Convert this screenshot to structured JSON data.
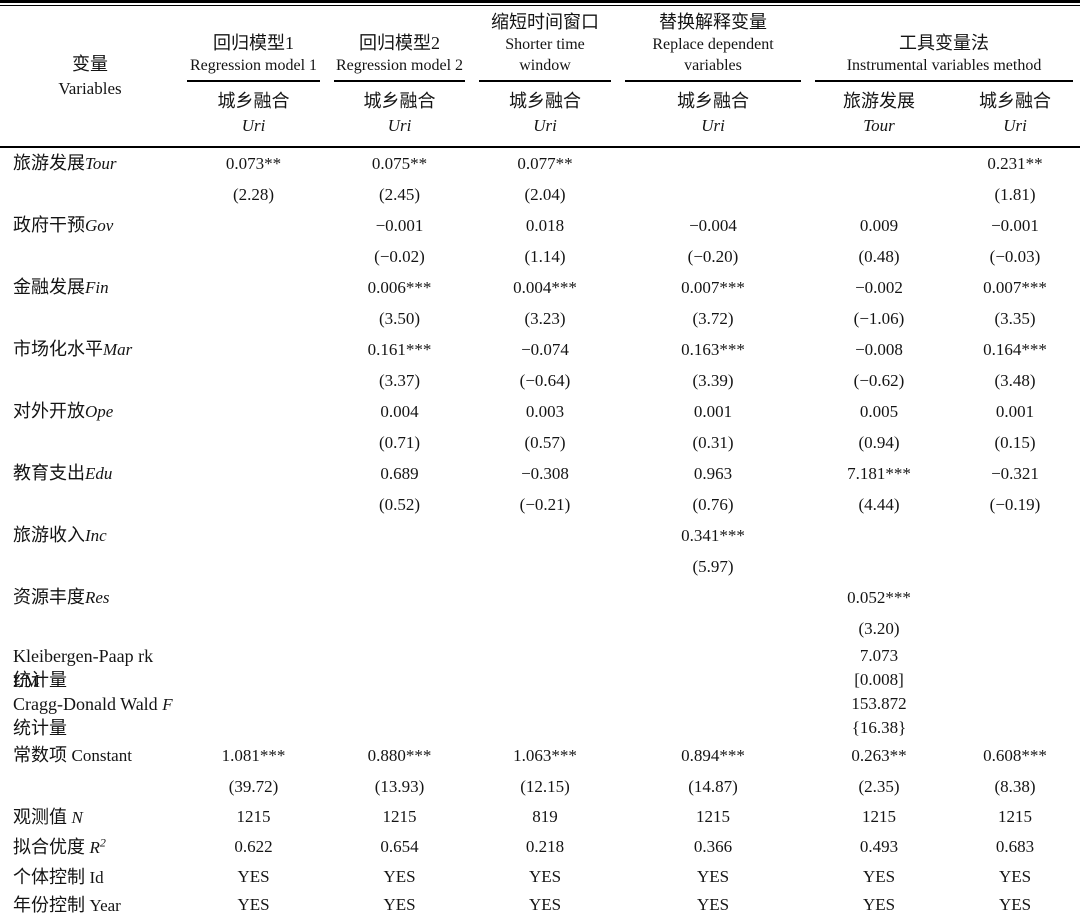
{
  "colors": {
    "background": "#ffffff",
    "text": "#141414",
    "rule": "#000000"
  },
  "table": {
    "header": {
      "variables": {
        "zh": "变量",
        "en": "Variables"
      },
      "groups": [
        {
          "zh": "回归模型1",
          "en": "Regression model 1",
          "cols": 1
        },
        {
          "zh": "回归模型2",
          "en": "Regression model 2",
          "cols": 1
        },
        {
          "zh": "缩短时间窗口",
          "en": "Shorter time window",
          "cols": 1
        },
        {
          "zh": "替换解释变量",
          "en": "Replace dependent variables",
          "cols": 1
        },
        {
          "zh": "工具变量法",
          "en": "Instrumental variables method",
          "cols": 2
        }
      ],
      "columns": [
        {
          "zh": "城乡融合",
          "en": "Uri"
        },
        {
          "zh": "城乡融合",
          "en": "Uri"
        },
        {
          "zh": "城乡融合",
          "en": "Uri"
        },
        {
          "zh": "城乡融合",
          "en": "Uri"
        },
        {
          "zh": "旅游发展",
          "en": "Tour"
        },
        {
          "zh": "城乡融合",
          "en": "Uri"
        }
      ]
    },
    "rows": [
      {
        "label": {
          "zh": "旅游发展",
          "en": "Tour"
        },
        "it": true,
        "cells": [
          [
            "0.073**",
            "(2.28)"
          ],
          [
            "0.075**",
            "(2.45)"
          ],
          [
            "0.077**",
            "(2.04)"
          ],
          null,
          null,
          [
            "0.231**",
            "(1.81)"
          ]
        ]
      },
      {
        "label": {
          "zh": "政府干预",
          "en": "Gov"
        },
        "it": true,
        "cells": [
          null,
          [
            "−0.001",
            "(−0.02)"
          ],
          [
            "0.018",
            "(1.14)"
          ],
          [
            "−0.004",
            "(−0.20)"
          ],
          [
            "0.009",
            "(0.48)"
          ],
          [
            "−0.001",
            "(−0.03)"
          ]
        ]
      },
      {
        "label": {
          "zh": "金融发展",
          "en": "Fin"
        },
        "it": true,
        "cells": [
          null,
          [
            "0.006***",
            "(3.50)"
          ],
          [
            "0.004***",
            "(3.23)"
          ],
          [
            "0.007***",
            "(3.72)"
          ],
          [
            "−0.002",
            "(−1.06)"
          ],
          [
            "0.007***",
            "(3.35)"
          ]
        ]
      },
      {
        "label": {
          "zh": "市场化水平",
          "en": "Mar"
        },
        "it": true,
        "cells": [
          null,
          [
            "0.161***",
            "(3.37)"
          ],
          [
            "−0.074",
            "(−0.64)"
          ],
          [
            "0.163***",
            "(3.39)"
          ],
          [
            "−0.008",
            "(−0.62)"
          ],
          [
            "0.164***",
            "(3.48)"
          ]
        ]
      },
      {
        "label": {
          "zh": "对外开放",
          "en": "Ope"
        },
        "it": true,
        "cells": [
          null,
          [
            "0.004",
            "(0.71)"
          ],
          [
            "0.003",
            "(0.57)"
          ],
          [
            "0.001",
            "(0.31)"
          ],
          [
            "0.005",
            "(0.94)"
          ],
          [
            "0.001",
            "(0.15)"
          ]
        ]
      },
      {
        "label": {
          "zh": "教育支出",
          "en": "Edu"
        },
        "it": true,
        "cells": [
          null,
          [
            "0.689",
            "(0.52)"
          ],
          [
            "−0.308",
            "(−0.21)"
          ],
          [
            "0.963",
            "(0.76)"
          ],
          [
            "7.181***",
            "(4.44)"
          ],
          [
            "−0.321",
            "(−0.19)"
          ]
        ]
      },
      {
        "label": {
          "zh": "旅游收入",
          "en": "Inc"
        },
        "it": true,
        "cells": [
          null,
          null,
          null,
          [
            "0.341***",
            "(5.97)"
          ],
          null,
          null
        ]
      },
      {
        "label": {
          "zh": "资源丰度",
          "en": "Res"
        },
        "it": true,
        "cells": [
          null,
          null,
          null,
          null,
          [
            "0.052***",
            "(3.20)"
          ],
          null
        ]
      },
      {
        "label": {
          "zh": "Kleibergen-Paap rk LM",
          "en": ""
        },
        "label2": "统计量",
        "it": false,
        "tight": true,
        "cells": [
          null,
          null,
          null,
          null,
          [
            "7.073",
            "[0.008]"
          ],
          null
        ]
      },
      {
        "label": {
          "zh": "Cragg-Donald Wald ",
          "en": "F"
        },
        "label2": "统计量",
        "it": true,
        "tight": true,
        "cells": [
          null,
          null,
          null,
          null,
          [
            "153.872",
            "{16.38}"
          ],
          null
        ]
      },
      {
        "label": {
          "zh": "常数项 ",
          "en": "Constant"
        },
        "it": false,
        "cells": [
          [
            "1.081***",
            "(39.72)"
          ],
          [
            "0.880***",
            "(13.93)"
          ],
          [
            "1.063***",
            "(12.15)"
          ],
          [
            "0.894***",
            "(14.87)"
          ],
          [
            "0.263**",
            "(2.35)"
          ],
          [
            "0.608***",
            "(8.38)"
          ]
        ]
      },
      {
        "label": {
          "zh": "观测值 ",
          "en": "N"
        },
        "it": true,
        "single": true,
        "cells": [
          "1215",
          "1215",
          "819",
          "1215",
          "1215",
          "1215"
        ]
      },
      {
        "label": {
          "zh": "拟合优度 ",
          "en": "R",
          "sup": "2"
        },
        "it": true,
        "single": true,
        "cells": [
          "0.622",
          "0.654",
          "0.218",
          "0.366",
          "0.493",
          "0.683"
        ]
      },
      {
        "label": {
          "zh": "个体控制 ",
          "en": "Id"
        },
        "it": false,
        "single": true,
        "cells": [
          "YES",
          "YES",
          "YES",
          "YES",
          "YES",
          "YES"
        ]
      },
      {
        "label": {
          "zh": "年份控制 ",
          "en": "Year"
        },
        "it": false,
        "single": true,
        "last": true,
        "cells": [
          "YES",
          "YES",
          "YES",
          "YES",
          "YES",
          "YES"
        ]
      }
    ]
  }
}
